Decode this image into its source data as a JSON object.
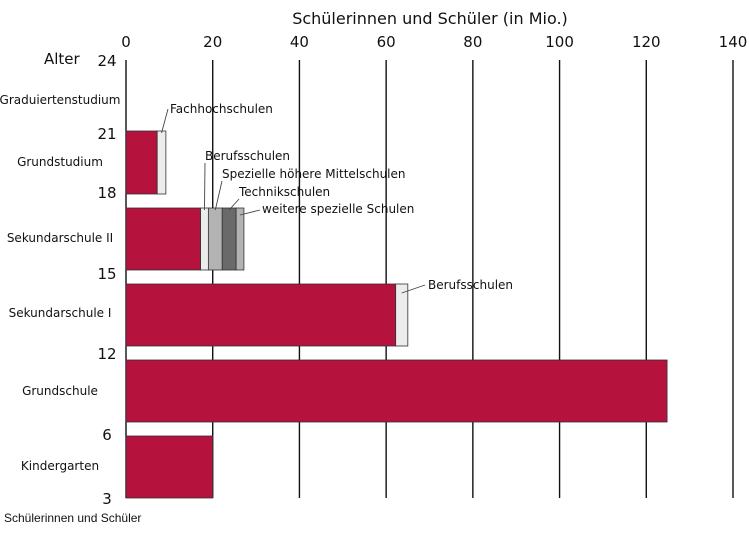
{
  "caption": "Schülerinnen und Schüler",
  "chart_data": {
    "type": "bar",
    "orientation": "horizontal",
    "stacked": true,
    "title": "",
    "xlabel": "Schülerinnen und Schüler (in Mio.)",
    "ylabel": "Alter",
    "xlim": [
      0,
      140
    ],
    "x_ticks": [
      0,
      20,
      40,
      60,
      80,
      100,
      120,
      140
    ],
    "grid": "vertical",
    "age_ticks": [
      24,
      21,
      18,
      15,
      12,
      6,
      3
    ],
    "categories": [
      {
        "name": "Graduiertenstudium",
        "segments": []
      },
      {
        "name": "Grundstudium",
        "segments": [
          {
            "name": "",
            "value": 7.2,
            "color": "#b5123e"
          },
          {
            "name": "Fachhochschulen",
            "value": 2.0,
            "color": "#ececec"
          }
        ]
      },
      {
        "name": "Sekundarschule II",
        "segments": [
          {
            "name": "",
            "value": 17.2,
            "color": "#b5123e"
          },
          {
            "name": "Berufsschulen",
            "value": 1.8,
            "color": "#ececec"
          },
          {
            "name": "Spezielle höhere Mittelschulen",
            "value": 3.2,
            "color": "#b3b3b3"
          },
          {
            "name": "Technikschulen",
            "value": 3.2,
            "color": "#6a6a6a"
          },
          {
            "name": "weitere spezielle Schulen",
            "value": 1.8,
            "color": "#b3b3b3"
          }
        ]
      },
      {
        "name": "Sekundarschule I",
        "segments": [
          {
            "name": "",
            "value": 62.2,
            "color": "#b5123e"
          },
          {
            "name": "Berufsschulen",
            "value": 2.8,
            "color": "#ececec"
          }
        ]
      },
      {
        "name": "Grundschule",
        "segments": [
          {
            "name": "",
            "value": 124.8,
            "color": "#b5123e"
          }
        ]
      },
      {
        "name": "Kindergarten",
        "segments": [
          {
            "name": "",
            "value": 20.0,
            "color": "#b5123e"
          }
        ]
      }
    ]
  }
}
